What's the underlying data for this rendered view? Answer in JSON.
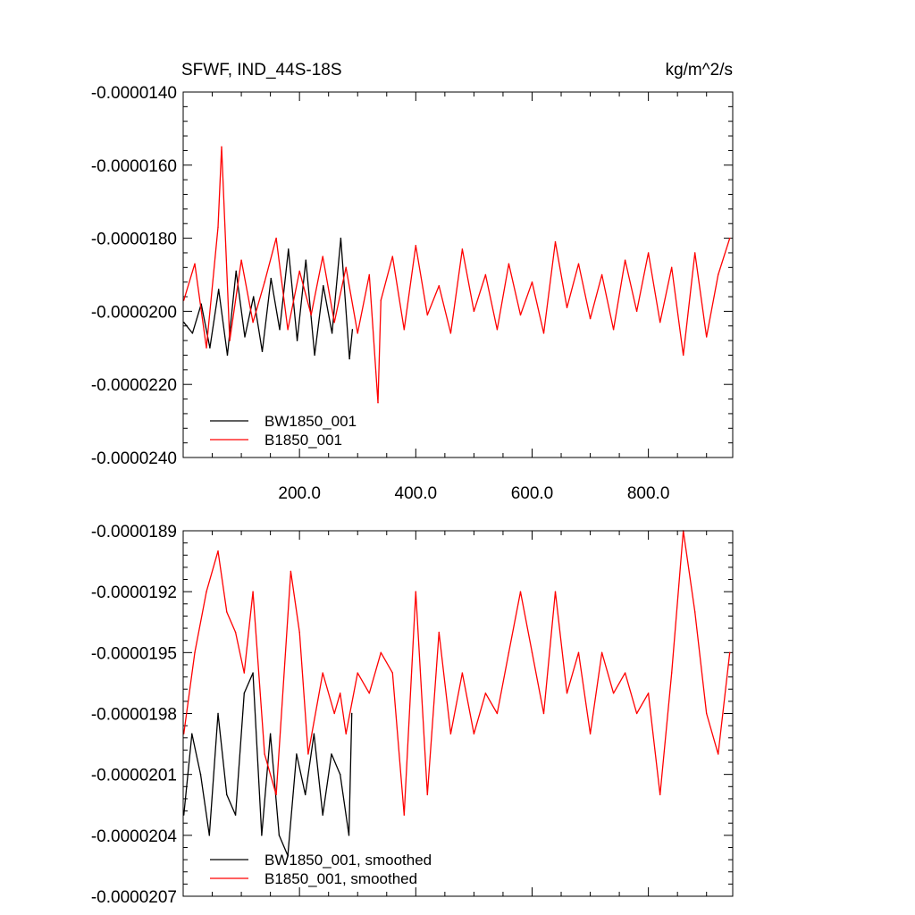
{
  "chart_data": [
    {
      "type": "line",
      "title": "SFWF, IND_44S-18S",
      "units": "kg/m^2/s",
      "xlim": [
        0,
        945
      ],
      "ylim": [
        -2.4e-05,
        -1.4e-05
      ],
      "yticks": [
        {
          "value": -1.4e-05,
          "label": "-0.0000140"
        },
        {
          "value": -1.6e-05,
          "label": "-0.0000160"
        },
        {
          "value": -1.8e-05,
          "label": "-0.0000180"
        },
        {
          "value": -2e-05,
          "label": "-0.0000200"
        },
        {
          "value": -2.2e-05,
          "label": "-0.0000220"
        },
        {
          "value": -2.4e-05,
          "label": "-0.0000240"
        }
      ],
      "xticks": [
        {
          "value": 200,
          "label": "200.0"
        },
        {
          "value": 400,
          "label": "400.0"
        },
        {
          "value": 600,
          "label": "600.0"
        },
        {
          "value": 800,
          "label": "800.0"
        }
      ],
      "legend_position": "bottom-left",
      "series": [
        {
          "name": "BW1850_001",
          "color": "#000000",
          "x": [
            1,
            16,
            31,
            46,
            61,
            76,
            91,
            106,
            121,
            136,
            151,
            166,
            181,
            196,
            211,
            226,
            241,
            256,
            271,
            286,
            291
          ],
          "values": [
            -2.03e-05,
            -2.06e-05,
            -1.98e-05,
            -2.1e-05,
            -1.94e-05,
            -2.12e-05,
            -1.89e-05,
            -2.07e-05,
            -1.96e-05,
            -2.11e-05,
            -1.91e-05,
            -2.05e-05,
            -1.83e-05,
            -2.08e-05,
            -1.86e-05,
            -2.12e-05,
            -1.93e-05,
            -2.06e-05,
            -1.8e-05,
            -2.13e-05,
            -2.05e-05
          ]
        },
        {
          "name": "B1850_001",
          "color": "#ff0000",
          "x": [
            1,
            20,
            40,
            60,
            66,
            80,
            100,
            120,
            140,
            160,
            180,
            200,
            220,
            240,
            260,
            280,
            300,
            320,
            335,
            340,
            360,
            380,
            400,
            420,
            440,
            460,
            480,
            500,
            520,
            540,
            560,
            580,
            600,
            620,
            640,
            660,
            680,
            700,
            720,
            740,
            760,
            780,
            800,
            820,
            840,
            860,
            880,
            900,
            920,
            940
          ],
          "values": [
            -1.97e-05,
            -1.87e-05,
            -2.1e-05,
            -1.77e-05,
            -1.55e-05,
            -2.08e-05,
            -1.86e-05,
            -2.03e-05,
            -1.92e-05,
            -1.8e-05,
            -2.05e-05,
            -1.89e-05,
            -2.01e-05,
            -1.85e-05,
            -2.03e-05,
            -1.88e-05,
            -2.06e-05,
            -1.9e-05,
            -2.25e-05,
            -1.97e-05,
            -1.85e-05,
            -2.05e-05,
            -1.82e-05,
            -2.01e-05,
            -1.93e-05,
            -2.06e-05,
            -1.83e-05,
            -2e-05,
            -1.9e-05,
            -2.05e-05,
            -1.87e-05,
            -2.01e-05,
            -1.92e-05,
            -2.06e-05,
            -1.81e-05,
            -1.99e-05,
            -1.87e-05,
            -2.02e-05,
            -1.9e-05,
            -2.05e-05,
            -1.86e-05,
            -2e-05,
            -1.84e-05,
            -2.03e-05,
            -1.88e-05,
            -2.12e-05,
            -1.84e-05,
            -2.07e-05,
            -1.9e-05,
            -1.8e-05
          ]
        }
      ]
    },
    {
      "type": "line",
      "xlim": [
        0,
        945
      ],
      "ylim": [
        -2.07e-05,
        -1.89e-05
      ],
      "yticks": [
        {
          "value": -1.89e-05,
          "label": "-0.0000189"
        },
        {
          "value": -1.92e-05,
          "label": "-0.0000192"
        },
        {
          "value": -1.95e-05,
          "label": "-0.0000195"
        },
        {
          "value": -1.98e-05,
          "label": "-0.0000198"
        },
        {
          "value": -2.01e-05,
          "label": "-0.0000201"
        },
        {
          "value": -2.04e-05,
          "label": "-0.0000204"
        },
        {
          "value": -2.07e-05,
          "label": "-0.0000207"
        }
      ],
      "legend_position": "bottom-left",
      "series": [
        {
          "name": "BW1850_001, smoothed",
          "color": "#000000",
          "x": [
            1,
            15,
            30,
            45,
            60,
            75,
            90,
            105,
            120,
            135,
            150,
            165,
            180,
            195,
            210,
            225,
            240,
            255,
            270,
            285,
            290
          ],
          "values": [
            -2.03e-05,
            -1.99e-05,
            -2.01e-05,
            -2.04e-05,
            -1.98e-05,
            -2.02e-05,
            -2.03e-05,
            -1.97e-05,
            -1.96e-05,
            -2.04e-05,
            -1.99e-05,
            -2.04e-05,
            -2.05e-05,
            -2e-05,
            -2.02e-05,
            -1.99e-05,
            -2.03e-05,
            -2e-05,
            -2.01e-05,
            -2.04e-05,
            -1.98e-05
          ]
        },
        {
          "name": "B1850_001, smoothed",
          "color": "#ff0000",
          "x": [
            1,
            20,
            40,
            60,
            75,
            90,
            105,
            120,
            140,
            160,
            185,
            200,
            215,
            240,
            260,
            270,
            280,
            300,
            320,
            340,
            360,
            380,
            400,
            420,
            440,
            460,
            480,
            500,
            520,
            540,
            560,
            580,
            600,
            620,
            640,
            660,
            680,
            700,
            720,
            740,
            760,
            780,
            800,
            820,
            840,
            860,
            880,
            900,
            920,
            940
          ],
          "values": [
            -1.99e-05,
            -1.95e-05,
            -1.92e-05,
            -1.9e-05,
            -1.93e-05,
            -1.94e-05,
            -1.96e-05,
            -1.92e-05,
            -2e-05,
            -2.02e-05,
            -1.91e-05,
            -1.94e-05,
            -2e-05,
            -1.96e-05,
            -1.98e-05,
            -1.97e-05,
            -1.99e-05,
            -1.96e-05,
            -1.97e-05,
            -1.95e-05,
            -1.96e-05,
            -2.03e-05,
            -1.92e-05,
            -2.02e-05,
            -1.94e-05,
            -1.99e-05,
            -1.96e-05,
            -1.99e-05,
            -1.97e-05,
            -1.98e-05,
            -1.95e-05,
            -1.92e-05,
            -1.95e-05,
            -1.98e-05,
            -1.92e-05,
            -1.97e-05,
            -1.95e-05,
            -1.99e-05,
            -1.95e-05,
            -1.97e-05,
            -1.96e-05,
            -1.98e-05,
            -1.97e-05,
            -2.02e-05,
            -1.96e-05,
            -1.89e-05,
            -1.93e-05,
            -1.98e-05,
            -2e-05,
            -1.95e-05
          ]
        }
      ]
    }
  ]
}
